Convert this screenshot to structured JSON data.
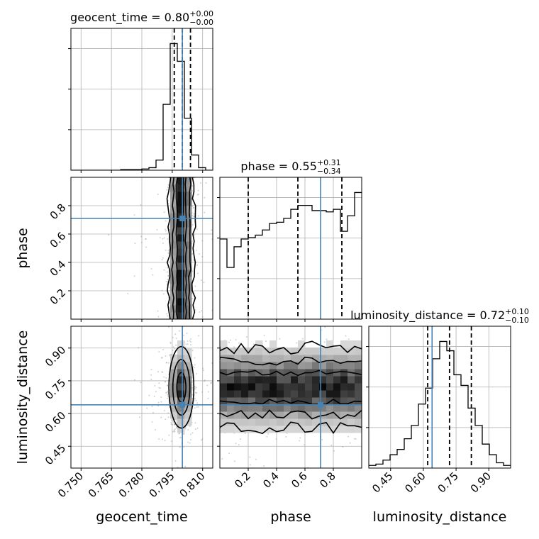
{
  "chart_data": {
    "type": "corner",
    "colors": {
      "truth": "#4682b4",
      "hist": "#000000",
      "quantile": "#000000",
      "grid": "#b0b0b0"
    },
    "parameters": [
      {
        "name": "geocent_time",
        "axis_label": "geocent_time",
        "range": [
          0.745,
          0.815
        ],
        "ticks": [
          0.75,
          0.765,
          0.78,
          0.795,
          0.81
        ],
        "tick_labels": [
          "0.750",
          "0.765",
          "0.780",
          "0.795",
          "0.810"
        ],
        "truth": 0.8,
        "quantiles": [
          0.796,
          0.8,
          0.804
        ],
        "title": {
          "main": "geocent_time = 0.80",
          "sup": "+0.00",
          "sub": "−0.00"
        },
        "hist": {
          "edges": [
            0.745,
            0.7485,
            0.752,
            0.7555,
            0.759,
            0.7625,
            0.766,
            0.7695,
            0.773,
            0.7765,
            0.78,
            0.7835,
            0.787,
            0.7905,
            0.794,
            0.7975,
            0.801,
            0.8045,
            0.808,
            0.8115,
            0.815
          ],
          "counts": [
            0,
            0,
            0,
            0,
            0,
            0,
            0,
            0.5,
            0.5,
            0.5,
            1,
            2,
            8,
            52,
            100,
            86,
            41,
            12,
            2,
            0
          ]
        }
      },
      {
        "name": "phase",
        "axis_label": "phase",
        "range": [
          0.0,
          1.0
        ],
        "ticks": [
          0.2,
          0.4,
          0.6,
          0.8
        ],
        "tick_labels": [
          "0.2",
          "0.4",
          "0.6",
          "0.8"
        ],
        "truth": 0.71,
        "quantiles": [
          0.2,
          0.55,
          0.86
        ],
        "title": {
          "main": "phase = 0.55",
          "sup": "+0.31",
          "sub": "−0.34"
        },
        "hist": {
          "edges": [
            0.0,
            0.05,
            0.1,
            0.15,
            0.2,
            0.25,
            0.3,
            0.35,
            0.4,
            0.45,
            0.5,
            0.55,
            0.6,
            0.65,
            0.7,
            0.75,
            0.8,
            0.85,
            0.9,
            0.95,
            1.0
          ],
          "counts": [
            62,
            40,
            56,
            62,
            63,
            65,
            69,
            74,
            75,
            78,
            85,
            88,
            88,
            84,
            84,
            83,
            85,
            68,
            80,
            98
          ]
        }
      },
      {
        "name": "luminosity_distance",
        "axis_label": "luminosity_distance",
        "range": [
          0.35,
          1.0
        ],
        "ticks": [
          0.45,
          0.6,
          0.75,
          0.9
        ],
        "tick_labels": [
          "0.45",
          "0.60",
          "0.75",
          "0.90"
        ],
        "truth": 0.64,
        "quantiles": [
          0.62,
          0.72,
          0.82
        ],
        "title": {
          "main": "luminosity_distance = 0.72",
          "sup": "+0.10",
          "sub": "−0.10"
        },
        "hist": {
          "edges": [
            0.35,
            0.3825,
            0.415,
            0.4475,
            0.48,
            0.5125,
            0.545,
            0.5775,
            0.61,
            0.6425,
            0.675,
            0.7075,
            0.74,
            0.7725,
            0.805,
            0.8375,
            0.87,
            0.9025,
            0.935,
            0.9675,
            1.0
          ],
          "counts": [
            2,
            3,
            6,
            10,
            14,
            22,
            32,
            48,
            60,
            82,
            95,
            88,
            70,
            62,
            45,
            32,
            18,
            10,
            4,
            2
          ]
        }
      }
    ],
    "pairs": [
      {
        "x": "geocent_time",
        "y": "phase",
        "yticks": [
          0.2,
          0.4,
          0.6,
          0.8
        ],
        "ytick_labels": [
          "0.2",
          "0.4",
          "0.6",
          "0.8"
        ],
        "yrange": [
          0.0,
          1.0
        ],
        "xrange": [
          0.745,
          0.815
        ],
        "truth": [
          0.8,
          0.71
        ],
        "core": {
          "cx": 0.7995,
          "cy": 0.5,
          "sx": 0.0028,
          "sy": 0.55
        }
      },
      {
        "x": "geocent_time",
        "y": "luminosity_distance",
        "yticks": [
          0.45,
          0.6,
          0.75,
          0.9
        ],
        "ytick_labels": [
          "0.45",
          "0.60",
          "0.75",
          "0.90"
        ],
        "yrange": [
          0.35,
          1.0
        ],
        "xrange": [
          0.745,
          0.815
        ],
        "truth": [
          0.8,
          0.64
        ],
        "core": {
          "cx": 0.7995,
          "cy": 0.72,
          "sx": 0.0028,
          "sy": 0.085
        }
      },
      {
        "x": "phase",
        "y": "luminosity_distance",
        "yticks": [
          0.45,
          0.6,
          0.75,
          0.9
        ],
        "ytick_labels": [
          "0.45",
          "0.60",
          "0.75",
          "0.90"
        ],
        "yrange": [
          0.35,
          1.0
        ],
        "xrange": [
          0.0,
          1.0
        ],
        "truth": [
          0.71,
          0.64
        ],
        "core": {
          "cx": 0.5,
          "cy": 0.72,
          "sx": 0.55,
          "sy": 0.085
        }
      }
    ]
  }
}
